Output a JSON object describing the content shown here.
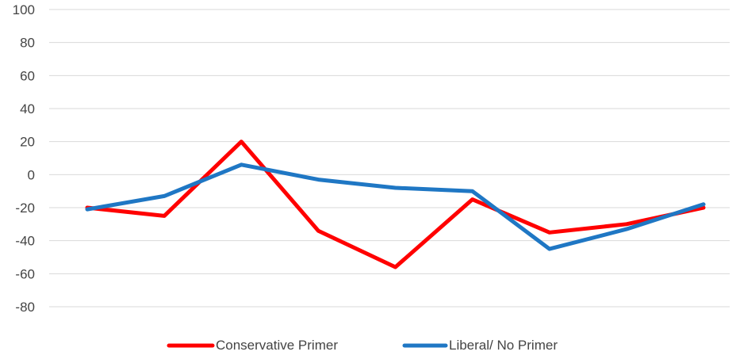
{
  "chart_data": {
    "type": "line",
    "title": "",
    "xlabel": "",
    "ylabel": "",
    "ylim": [
      -80,
      100
    ],
    "y_ticks": [
      "100",
      "80",
      "60",
      "40",
      "20",
      "0",
      "-20",
      "-40",
      "-60",
      "-80"
    ],
    "x": [
      1,
      2,
      3,
      4,
      5,
      6,
      7,
      8,
      9
    ],
    "grid": true,
    "legend_position": "bottom",
    "series": [
      {
        "name": "Conservative Primer",
        "color": "#ff0000",
        "values": [
          -20,
          -25,
          20,
          -34,
          -56,
          -15,
          -35,
          -30,
          -20
        ]
      },
      {
        "name": "Liberal/ No Primer",
        "color": "#1f77c4",
        "values": [
          -21,
          -13,
          6,
          -3,
          -8,
          -10,
          -45,
          -33,
          -18
        ]
      }
    ]
  }
}
